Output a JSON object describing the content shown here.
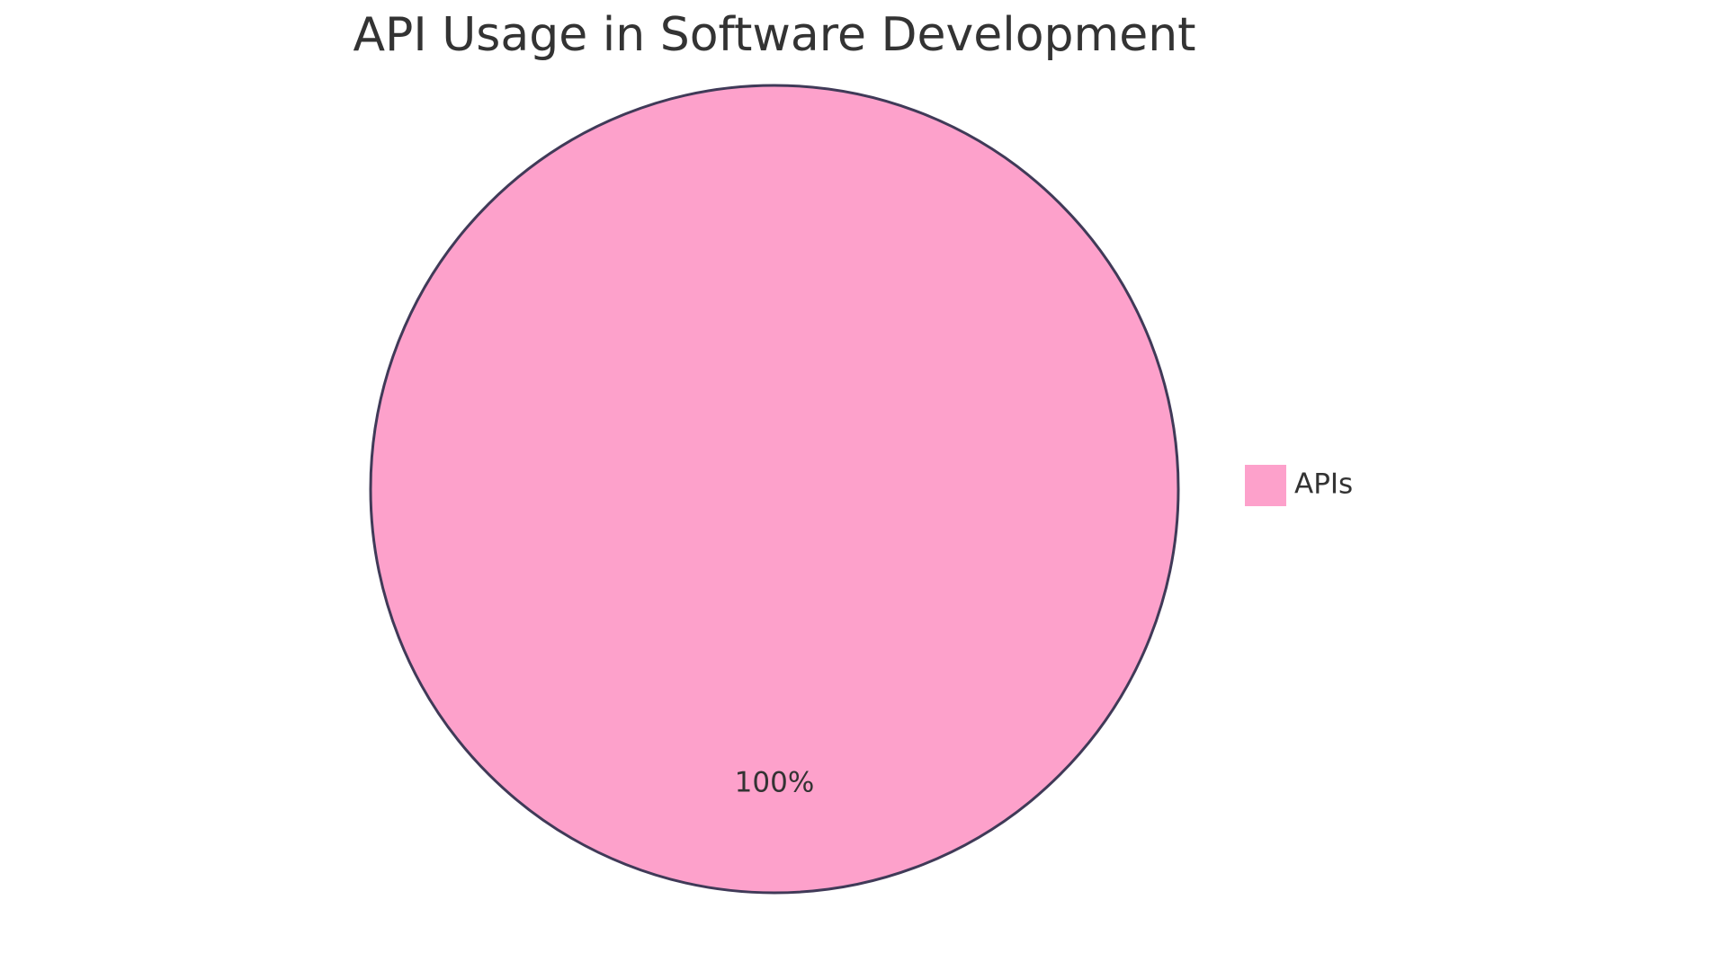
{
  "chart_data": {
    "type": "pie",
    "title": "API Usage in Software Development",
    "categories": [
      "APIs"
    ],
    "values": [
      100
    ],
    "value_labels": [
      "100%"
    ],
    "colors": [
      "#fda1cb"
    ],
    "legend": "right"
  }
}
